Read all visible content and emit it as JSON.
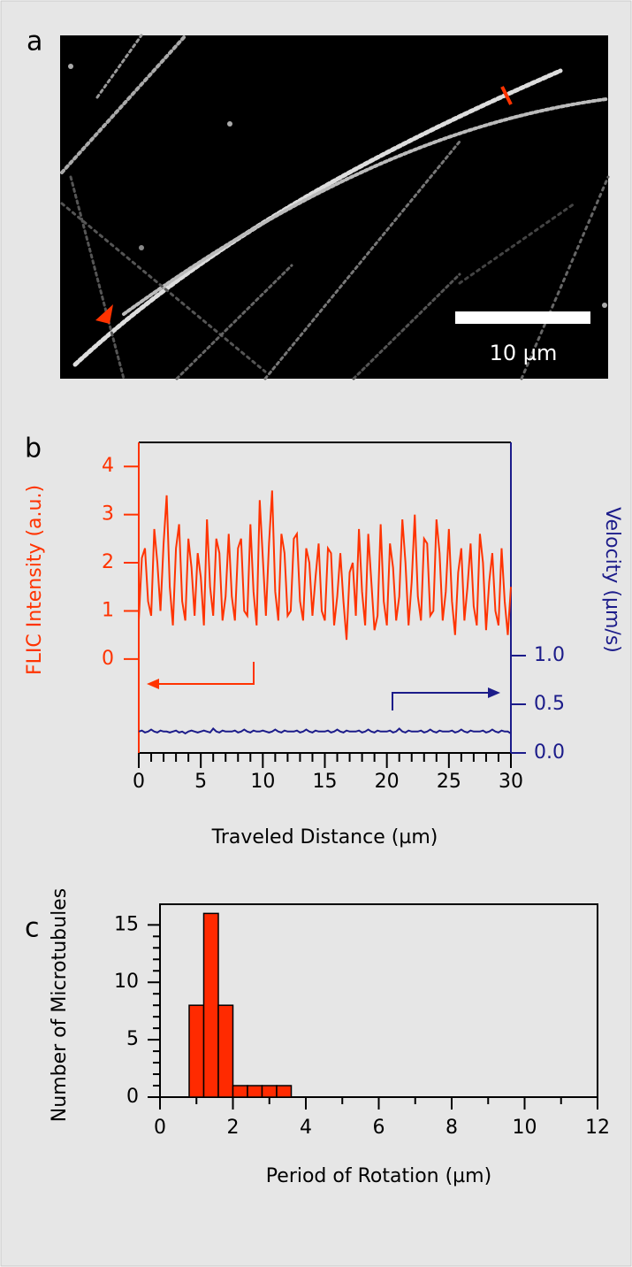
{
  "panel_a": {
    "label": "a",
    "scale_bar": "10 µm"
  },
  "chart_data": [
    {
      "type": "line",
      "panel_label": "b",
      "xlabel": "Traveled Distance (µm)",
      "ylabel": "FLIC Intensity (a.u.)",
      "y2label": "Velocity (µm/s)",
      "xlim": [
        0,
        30
      ],
      "xticks": [
        0,
        5,
        10,
        15,
        20,
        25,
        30
      ],
      "ylim": [
        -1.95,
        4.5
      ],
      "yticks": [
        0,
        1,
        2,
        3,
        4
      ],
      "y2lim": [
        0,
        3.19
      ],
      "y2ticks": [
        {
          "value": 0,
          "label": "0.0"
        },
        0.5,
        {
          "value": 1,
          "label": "1.0"
        }
      ],
      "x": [
        0,
        0.25,
        0.5,
        0.75,
        1,
        1.25,
        1.5,
        1.75,
        2,
        2.25,
        2.5,
        2.75,
        3,
        3.25,
        3.5,
        3.75,
        4,
        4.25,
        4.5,
        4.75,
        5,
        5.25,
        5.5,
        5.75,
        6,
        6.25,
        6.5,
        6.75,
        7,
        7.25,
        7.5,
        7.75,
        8,
        8.25,
        8.5,
        8.75,
        9,
        9.25,
        9.5,
        9.75,
        10,
        10.25,
        10.5,
        10.75,
        11,
        11.25,
        11.5,
        11.75,
        12,
        12.25,
        12.5,
        12.75,
        13,
        13.25,
        13.5,
        13.75,
        14,
        14.25,
        14.5,
        14.75,
        15,
        15.25,
        15.5,
        15.75,
        16,
        16.25,
        16.5,
        16.75,
        17,
        17.25,
        17.5,
        17.75,
        18,
        18.25,
        18.5,
        18.75,
        19,
        19.25,
        19.5,
        19.75,
        20,
        20.25,
        20.5,
        20.75,
        21,
        21.25,
        21.5,
        21.75,
        22,
        22.25,
        22.5,
        22.75,
        23,
        23.25,
        23.5,
        23.75,
        24,
        24.25,
        24.5,
        24.75,
        25,
        25.25,
        25.5,
        25.75,
        26,
        26.25,
        26.5,
        26.75,
        27,
        27.25,
        27.5,
        27.75,
        28,
        28.25,
        28.5,
        28.75,
        29,
        29.25,
        29.5,
        29.75,
        30
      ],
      "series": [
        {
          "color": "#ff3300",
          "values": [
            0.8,
            2.1,
            2.3,
            1.2,
            0.9,
            2.7,
            2.0,
            1.0,
            2.4,
            3.4,
            1.5,
            0.7,
            2.3,
            2.8,
            1.2,
            0.8,
            2.5,
            1.9,
            0.9,
            2.2,
            1.7,
            0.7,
            2.9,
            1.5,
            0.9,
            2.5,
            2.2,
            0.8,
            1.3,
            2.6,
            1.3,
            0.8,
            2.3,
            2.5,
            1.0,
            0.9,
            2.8,
            1.4,
            0.7,
            3.3,
            2.1,
            0.9,
            2.4,
            3.5,
            1.4,
            0.8,
            2.6,
            2.2,
            0.9,
            1.0,
            2.5,
            2.6,
            1.2,
            0.8,
            2.3,
            2.0,
            0.9,
            1.7,
            2.4,
            1.0,
            0.8,
            2.3,
            2.2,
            0.7,
            1.3,
            2.2,
            1.2,
            0.4,
            1.8,
            2.0,
            0.9,
            2.7,
            1.4,
            0.7,
            2.6,
            1.6,
            0.6,
            0.9,
            2.8,
            1.2,
            0.7,
            2.4,
            1.9,
            0.8,
            1.3,
            2.9,
            2.0,
            0.7,
            1.6,
            3.0,
            1.3,
            0.8,
            2.5,
            2.4,
            0.9,
            1.0,
            2.9,
            2.2,
            0.8,
            1.4,
            2.7,
            1.2,
            0.5,
            1.8,
            2.3,
            0.8,
            1.5,
            2.4,
            1.1,
            0.7,
            2.6,
            2.0,
            0.6,
            1.6,
            2.2,
            1.0,
            0.7,
            2.3,
            1.2,
            0.5,
            1.5
          ]
        },
        {
          "color": "#1c1c8a",
          "axis": "y2",
          "values": [
            0.22,
            0.23,
            0.21,
            0.22,
            0.24,
            0.22,
            0.21,
            0.23,
            0.22,
            0.22,
            0.21,
            0.22,
            0.23,
            0.21,
            0.22,
            0.2,
            0.22,
            0.23,
            0.22,
            0.21,
            0.22,
            0.23,
            0.22,
            0.21,
            0.25,
            0.22,
            0.21,
            0.23,
            0.22,
            0.22,
            0.22,
            0.23,
            0.21,
            0.22,
            0.24,
            0.22,
            0.21,
            0.23,
            0.22,
            0.22,
            0.23,
            0.22,
            0.21,
            0.22,
            0.24,
            0.22,
            0.21,
            0.23,
            0.22,
            0.22,
            0.22,
            0.23,
            0.21,
            0.22,
            0.24,
            0.22,
            0.21,
            0.23,
            0.22,
            0.22,
            0.22,
            0.23,
            0.21,
            0.22,
            0.24,
            0.22,
            0.21,
            0.23,
            0.22,
            0.22,
            0.22,
            0.23,
            0.21,
            0.22,
            0.24,
            0.22,
            0.21,
            0.23,
            0.22,
            0.22,
            0.22,
            0.23,
            0.21,
            0.22,
            0.25,
            0.22,
            0.21,
            0.23,
            0.22,
            0.22,
            0.22,
            0.23,
            0.21,
            0.22,
            0.24,
            0.22,
            0.21,
            0.23,
            0.22,
            0.22,
            0.22,
            0.23,
            0.21,
            0.22,
            0.24,
            0.22,
            0.21,
            0.23,
            0.22,
            0.22,
            0.22,
            0.23,
            0.21,
            0.22,
            0.24,
            0.22,
            0.21,
            0.23,
            0.22,
            0.22,
            0.2
          ]
        }
      ]
    },
    {
      "type": "histogram",
      "panel_label": "c",
      "xlabel": "Period of Rotation (µm)",
      "ylabel": "Number of Microtubules",
      "xlim": [
        0,
        12
      ],
      "xticks": [
        0,
        2,
        4,
        6,
        8,
        10,
        12
      ],
      "ylim": [
        0,
        16.8
      ],
      "yticks": [
        0,
        5,
        10,
        15
      ],
      "color": "#ff2a00",
      "bins": [
        0,
        0.4,
        0.8,
        1.2,
        1.6,
        2,
        2.4,
        2.8,
        3.2,
        3.6,
        4,
        4.4,
        4.8,
        5.2,
        5.6,
        6,
        6.4,
        6.8,
        7.2,
        7.6,
        8
      ],
      "values": [
        0,
        0,
        8,
        16,
        8,
        1,
        1,
        1,
        1,
        0,
        0,
        0,
        0,
        0,
        0,
        0,
        0,
        0,
        0,
        0
      ]
    }
  ]
}
